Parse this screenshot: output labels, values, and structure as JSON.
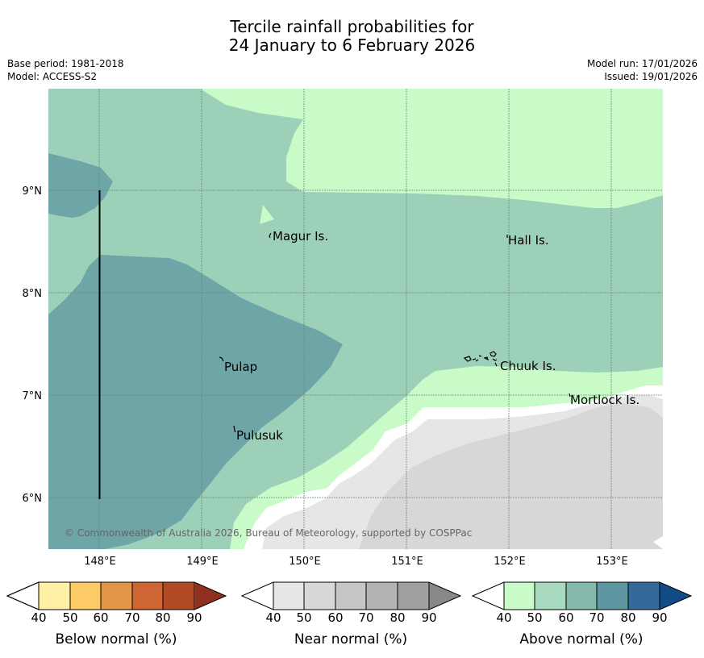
{
  "title": {
    "line1": "Tercile rainfall probabilities for",
    "line2": "24 January to 6 February 2026"
  },
  "meta": {
    "base_period": "Base period: 1981-2018",
    "model": "Model: ACCESS-S2",
    "model_run": "Model run: 17/01/2026",
    "issued": "Issued: 19/01/2026"
  },
  "map": {
    "lon_ticks": [
      "148°E",
      "149°E",
      "150°E",
      "151°E",
      "152°E",
      "153°E"
    ],
    "lat_ticks": [
      "9°N",
      "8°N",
      "7°N",
      "6°N"
    ],
    "places": {
      "magur": "Magur Is.",
      "hall": "Hall Is.",
      "pulap": "Pulap",
      "chuuk": "Chuuk Is.",
      "mortlock": "Mortlock Is.",
      "pulusuk": "Pulusuk"
    },
    "copyright": "© Commonwealth of Australia 2026, Bureau of Meteorology, supported by COSPPac"
  },
  "legends": {
    "below": {
      "label": "Below normal (%)",
      "ticks": [
        "40",
        "50",
        "60",
        "70",
        "80",
        "90"
      ],
      "colors": [
        "#fff0a6",
        "#fdcb66",
        "#e39548",
        "#cf6434",
        "#b34a26",
        "#8f311e"
      ]
    },
    "near": {
      "label": "Near normal (%)",
      "ticks": [
        "40",
        "50",
        "60",
        "70",
        "80",
        "90"
      ],
      "colors": [
        "#e6e6e6",
        "#d7d7d7",
        "#c6c6c6",
        "#b3b3b3",
        "#a0a0a0",
        "#888888"
      ]
    },
    "above": {
      "label": "Above normal (%)",
      "ticks": [
        "40",
        "50",
        "60",
        "70",
        "80",
        "90"
      ],
      "colors": [
        "#c8fbc8",
        "#a8dac0",
        "#86b8ac",
        "#5e97a1",
        "#336a9a",
        "#114c88"
      ]
    }
  }
}
